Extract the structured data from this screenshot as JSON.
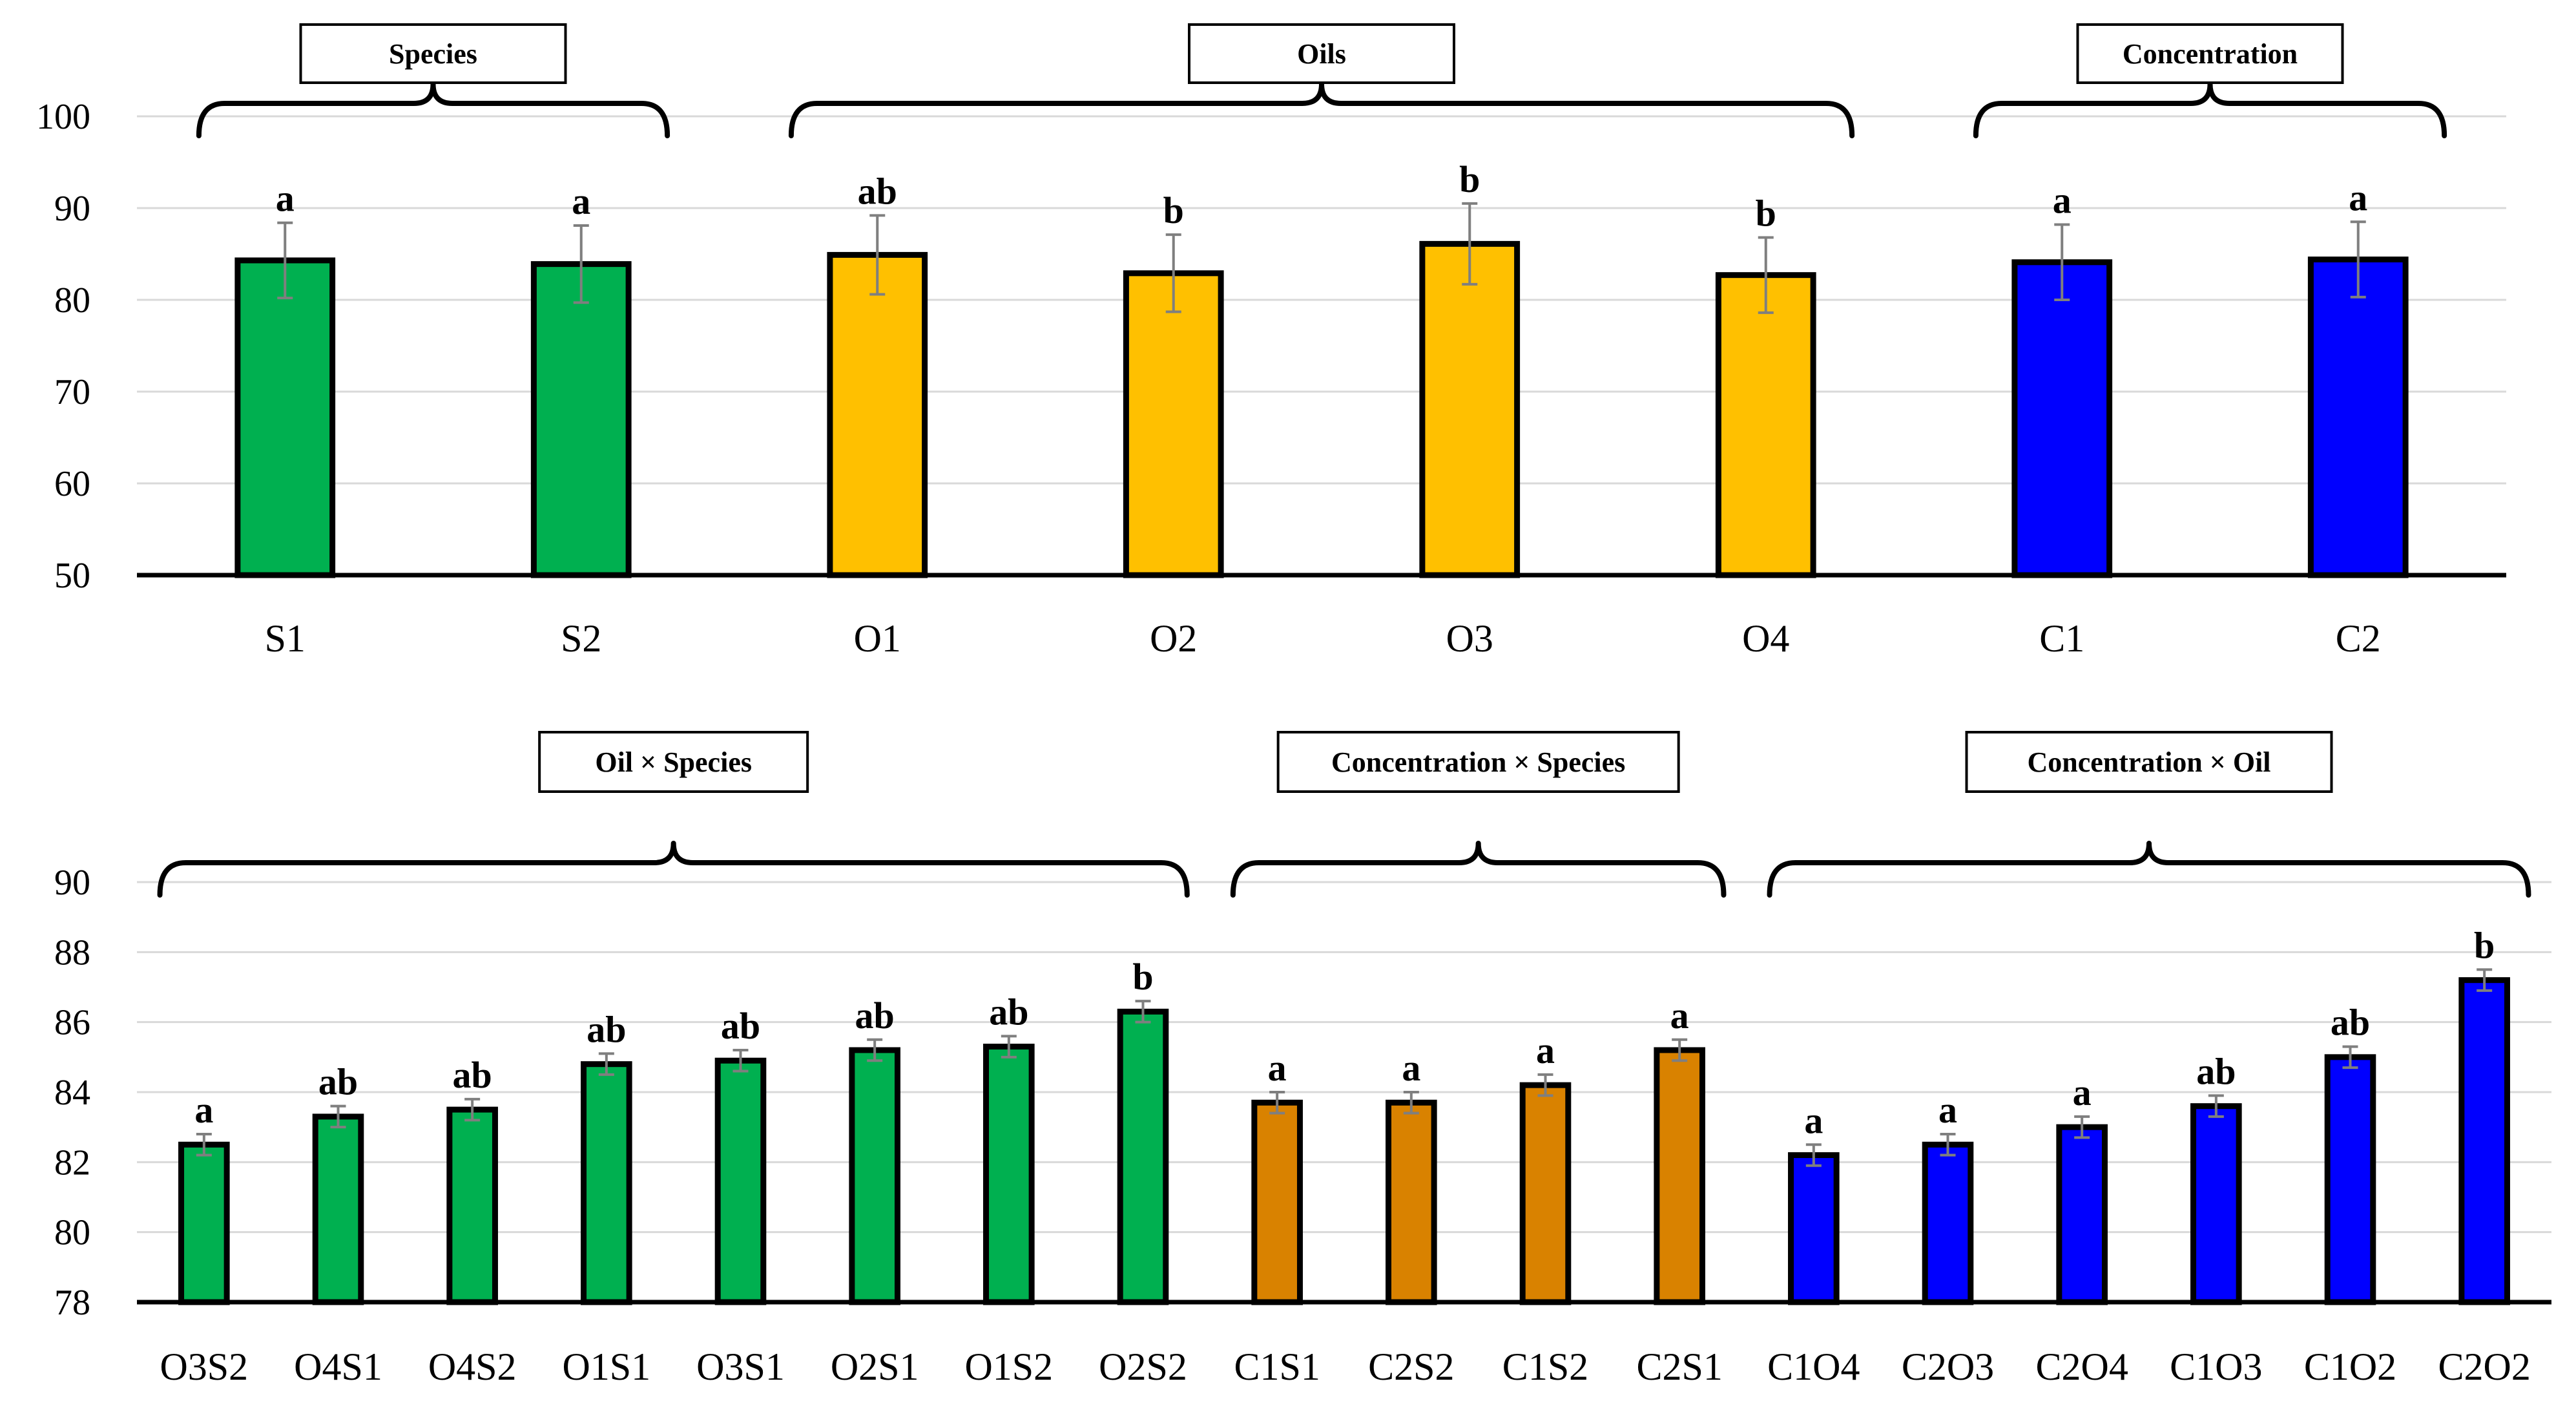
{
  "chart_data": [
    {
      "type": "bar",
      "ylim": [
        50,
        100
      ],
      "yticks": [
        50,
        60,
        70,
        80,
        90,
        100
      ],
      "grid": true,
      "categories": [
        "S1",
        "S2",
        "O1",
        "O2",
        "O3",
        "O4",
        "C1",
        "C2"
      ],
      "values": [
        84.3,
        83.9,
        84.9,
        82.9,
        86.1,
        82.7,
        84.1,
        84.4
      ],
      "errors": [
        4.1,
        4.2,
        4.3,
        4.2,
        4.4,
        4.1,
        4.1,
        4.1
      ],
      "significance": [
        "a",
        "a",
        "ab",
        "b",
        "b",
        "b",
        "a",
        "a"
      ],
      "colors": [
        "#00b050",
        "#00b050",
        "#ffc000",
        "#ffc000",
        "#ffc000",
        "#ffc000",
        "#0000ff",
        "#0000ff"
      ],
      "groups": [
        {
          "label": "Species",
          "from": 0,
          "to": 1
        },
        {
          "label": "Oils",
          "from": 2,
          "to": 5
        },
        {
          "label": "Concentration",
          "from": 6,
          "to": 7
        }
      ]
    },
    {
      "type": "bar",
      "ylim": [
        78,
        90
      ],
      "yticks": [
        78,
        80,
        82,
        84,
        86,
        88,
        90
      ],
      "grid": true,
      "categories": [
        "O3S2",
        "O4S1",
        "O4S2",
        "O1S1",
        "O3S1",
        "O2S1",
        "O1S2",
        "O2S2",
        "C1S1",
        "C2S2",
        "C1S2",
        "C2S1",
        "C1O4",
        "C2O3",
        "C2O4",
        "C1O3",
        "C1O2",
        "C2O2"
      ],
      "values": [
        82.5,
        83.3,
        83.5,
        84.8,
        84.9,
        85.2,
        85.3,
        86.3,
        83.7,
        83.7,
        84.2,
        85.2,
        82.2,
        82.5,
        83.0,
        83.6,
        85.0,
        87.2
      ],
      "errors": [
        0.3,
        0.3,
        0.3,
        0.3,
        0.3,
        0.3,
        0.3,
        0.3,
        0.3,
        0.3,
        0.3,
        0.3,
        0.3,
        0.3,
        0.3,
        0.3,
        0.3,
        0.3
      ],
      "significance": [
        "a",
        "ab",
        "ab",
        "ab",
        "ab",
        "ab",
        "ab",
        "b",
        "a",
        "a",
        "a",
        "a",
        "a",
        "a",
        "a",
        "ab",
        "ab",
        "b"
      ],
      "colors": [
        "#00b050",
        "#00b050",
        "#00b050",
        "#00b050",
        "#00b050",
        "#00b050",
        "#00b050",
        "#00b050",
        "#d98200",
        "#d98200",
        "#d98200",
        "#d98200",
        "#0000ff",
        "#0000ff",
        "#0000ff",
        "#0000ff",
        "#0000ff",
        "#0000ff"
      ],
      "groups": [
        {
          "label": "Oil × Species",
          "from": 0,
          "to": 7
        },
        {
          "label": "Concentration × Species",
          "from": 8,
          "to": 11
        },
        {
          "label": "Concentration × Oil",
          "from": 12,
          "to": 17
        }
      ]
    }
  ]
}
